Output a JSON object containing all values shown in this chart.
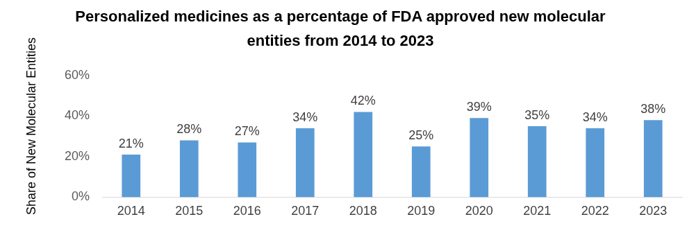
{
  "chart_data": {
    "type": "bar",
    "title": "Personalized medicines as a percentage of FDA approved new molecular entities from 2014 to 2023",
    "ylabel": "Share of New Molecular Entities",
    "categories": [
      "2014",
      "2015",
      "2016",
      "2017",
      "2018",
      "2019",
      "2020",
      "2021",
      "2022",
      "2023"
    ],
    "values": [
      21,
      28,
      27,
      34,
      42,
      25,
      39,
      35,
      34,
      38
    ],
    "value_labels": [
      "21%",
      "28%",
      "27%",
      "34%",
      "42%",
      "25%",
      "39%",
      "35%",
      "34%",
      "38%"
    ],
    "color": "#5b9bd5",
    "ylim": [
      0,
      60
    ],
    "yticks": [
      {
        "value": 0,
        "label": "0%"
      },
      {
        "value": 20,
        "label": "20%"
      },
      {
        "value": 40,
        "label": "40%"
      },
      {
        "value": 60,
        "label": "60%"
      }
    ],
    "grid": false,
    "legend": false
  }
}
